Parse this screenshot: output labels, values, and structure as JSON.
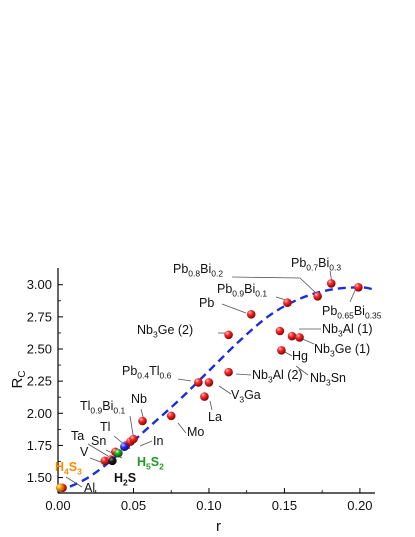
{
  "chart_data": {
    "type": "scatter",
    "xlabel": "r",
    "ylabel": "R_C",
    "ylabel_parts": {
      "base": "R",
      "sub": "C"
    },
    "xlim": [
      0.0,
      0.21
    ],
    "ylim": [
      1.38,
      3.13
    ],
    "x_ticks": [
      0.0,
      0.05,
      0.1,
      0.15,
      0.2
    ],
    "x_tick_labels": [
      "0.00",
      "0.05",
      "0.10",
      "0.15",
      "0.20"
    ],
    "y_ticks": [
      1.5,
      1.75,
      2.0,
      2.25,
      2.5,
      2.75,
      3.0
    ],
    "y_tick_labels": [
      "1.50",
      "1.75",
      "2.00",
      "2.25",
      "2.50",
      "2.75",
      "3.00"
    ],
    "grid": false,
    "series": [
      {
        "marker": "red-sphere",
        "color": "#e02020",
        "points": [
          {
            "x": 0.003,
            "y": 1.42,
            "label": "Al"
          },
          {
            "x": 0.031,
            "y": 1.63,
            "label": "V"
          },
          {
            "x": 0.035,
            "y": 1.64,
            "label": "Ta"
          },
          {
            "x": 0.038,
            "y": 1.7,
            "label": "Sn"
          },
          {
            "x": 0.045,
            "y": 1.75,
            "label": "Tl"
          },
          {
            "x": 0.048,
            "y": 1.78,
            "label": "Tl0.9Bi0.1"
          },
          {
            "x": 0.05,
            "y": 1.8,
            "label": "In"
          },
          {
            "x": 0.056,
            "y": 1.94,
            "label": "Nb"
          },
          {
            "x": 0.075,
            "y": 1.98,
            "label": "Mo"
          },
          {
            "x": 0.093,
            "y": 2.24,
            "label": "Pb0.4Tl0.6"
          },
          {
            "x": 0.1,
            "y": 2.24,
            "label": "V3Ga"
          },
          {
            "x": 0.097,
            "y": 2.13,
            "label": "La"
          },
          {
            "x": 0.113,
            "y": 2.32,
            "label": "Nb3Al (2)"
          },
          {
            "x": 0.113,
            "y": 2.61,
            "label": "Nb3Ge (2)"
          },
          {
            "x": 0.128,
            "y": 2.77,
            "label": "Pb"
          },
          {
            "x": 0.152,
            "y": 2.86,
            "label": "Pb0.9Bi0.1"
          },
          {
            "x": 0.172,
            "y": 2.91,
            "label": "Pb0.8Bi0.2"
          },
          {
            "x": 0.181,
            "y": 3.01,
            "label": "Pb0.7Bi0.3"
          },
          {
            "x": 0.199,
            "y": 2.98,
            "label": "Pb0.65Bi0.35"
          },
          {
            "x": 0.147,
            "y": 2.64,
            "label": "Nb3Al (1)"
          },
          {
            "x": 0.155,
            "y": 2.6,
            "label": "Nb3Ge (1)"
          },
          {
            "x": 0.16,
            "y": 2.59,
            "label": "Hg"
          },
          {
            "x": 0.148,
            "y": 2.49,
            "label": "Nb3Sn"
          }
        ]
      },
      {
        "marker": "orange-sphere",
        "color": "#ff8a00",
        "points": [
          {
            "x": 0.0015,
            "y": 1.42,
            "label": "H4S3"
          }
        ]
      },
      {
        "marker": "green-sphere",
        "color": "#1f9a1f",
        "points": [
          {
            "x": 0.04,
            "y": 1.69,
            "label": "H5S2"
          }
        ]
      },
      {
        "marker": "black-sphere",
        "color": "#111111",
        "points": [
          {
            "x": 0.036,
            "y": 1.63,
            "label": "H2S"
          }
        ]
      },
      {
        "marker": "blue-sphere",
        "color": "#2020e0",
        "points": [
          {
            "x": 0.044,
            "y": 1.74,
            "label": ""
          }
        ]
      }
    ],
    "fit_curve": {
      "style": "dashed",
      "color": "#1a2ee0",
      "points": [
        [
          0.0,
          1.39
        ],
        [
          0.02,
          1.5
        ],
        [
          0.04,
          1.68
        ],
        [
          0.06,
          1.89
        ],
        [
          0.08,
          2.1
        ],
        [
          0.1,
          2.33
        ],
        [
          0.12,
          2.56
        ],
        [
          0.14,
          2.76
        ],
        [
          0.16,
          2.89
        ],
        [
          0.18,
          2.96
        ],
        [
          0.2,
          2.98
        ],
        [
          0.21,
          2.96
        ]
      ]
    },
    "annotations": [
      {
        "text": "Pb",
        "sub": "0.8",
        "text2": "Bi",
        "sub2": "0.2"
      },
      {
        "text": "Pb",
        "sub": "0.7",
        "text2": "Bi",
        "sub2": "0.3"
      },
      {
        "text": "Pb",
        "sub": "0.9",
        "text2": "Bi",
        "sub2": "0.1"
      },
      {
        "text": "Pb",
        "sub": "0.65",
        "text2": "Bi",
        "sub2": "0.35"
      },
      {
        "text": "Pb"
      },
      {
        "text": "Nb",
        "sub": "3",
        "text2": "Ge (2)"
      },
      {
        "text": "Nb",
        "sub": "3",
        "text2": "Al (1)"
      },
      {
        "text": "Nb",
        "sub": "3",
        "text2": "Ge (1)"
      },
      {
        "text": "Hg"
      },
      {
        "text": "Nb",
        "sub": "3",
        "text2": "Sn"
      },
      {
        "text": "Pb",
        "sub": "0.4",
        "text2": "Tl",
        "sub2": "0.6"
      },
      {
        "text": "Nb",
        "sub": "3",
        "text2": "Al (2)"
      },
      {
        "text": "V",
        "sub": "3",
        "text2": "Ga"
      },
      {
        "text": "La"
      },
      {
        "text": "Tl",
        "sub": "0.9",
        "text2": "Bi",
        "sub2": "0.1"
      },
      {
        "text": "Nb"
      },
      {
        "text": "Mo"
      },
      {
        "text": "Tl"
      },
      {
        "text": "In"
      },
      {
        "text": "Ta"
      },
      {
        "text": "Sn"
      },
      {
        "text": "V"
      },
      {
        "text": "Al"
      },
      {
        "text": "H",
        "sub": "4",
        "text2": "S",
        "sub2": "3",
        "color": "#ff8a00"
      },
      {
        "text": "H",
        "sub": "5",
        "text2": "S",
        "sub2": "2",
        "color": "#1f9a1f"
      },
      {
        "text": "H",
        "sub": "2",
        "text2": "S",
        "color": "#111111"
      }
    ]
  }
}
